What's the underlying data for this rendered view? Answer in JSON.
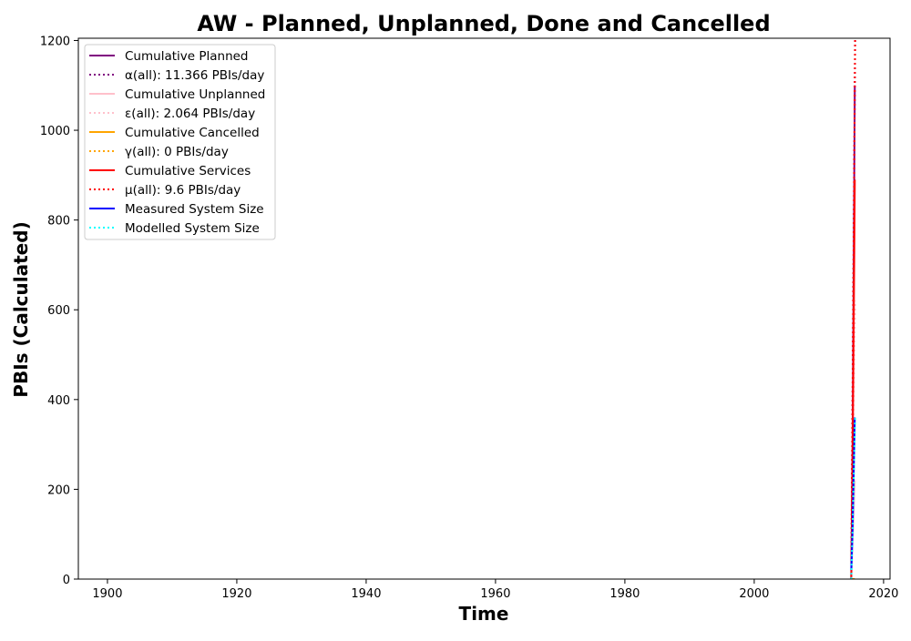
{
  "chart_data": {
    "type": "line",
    "title": "AW - Planned, Unplanned, Done  and Cancelled",
    "xlabel": "Time",
    "ylabel": "PBIs (Calculated)",
    "xlim": [
      1895.5,
      2021
    ],
    "ylim": [
      0,
      1205
    ],
    "x_ticks": [
      1900,
      1920,
      1940,
      1960,
      1980,
      2000,
      2020
    ],
    "y_ticks": [
      0,
      200,
      400,
      600,
      800,
      1000,
      1200
    ],
    "grid": false,
    "legend_position": "upper-left",
    "series": [
      {
        "name": "Cumulative Planned",
        "color": "#800080",
        "style": "solid",
        "x": [
          2015.0,
          2015.2,
          2015.4,
          2015.55
        ],
        "y": [
          0,
          300,
          750,
          1100
        ]
      },
      {
        "name": "α(all): 11.366 PBIs/day",
        "color": "#800080",
        "style": "dotted",
        "x": [
          2015.0,
          2015.6
        ],
        "y": [
          0,
          1205
        ]
      },
      {
        "name": "Cumulative Unplanned",
        "color": "#ffc0cb",
        "style": "solid",
        "x": [
          2015.0,
          2015.3,
          2015.55
        ],
        "y": [
          0,
          120,
          220
        ]
      },
      {
        "name": "ε(all): 2.064 PBIs/day",
        "color": "#ffc0cb",
        "style": "dotted",
        "x": [
          2015.0,
          2015.6
        ],
        "y": [
          0,
          620
        ]
      },
      {
        "name": "Cumulative Cancelled",
        "color": "#ffa500",
        "style": "solid",
        "x": [
          2015.0,
          2015.55
        ],
        "y": [
          0,
          0
        ]
      },
      {
        "name": "γ(all): 0 PBIs/day",
        "color": "#ffa500",
        "style": "dotted",
        "x": [
          2015.0,
          2015.6
        ],
        "y": [
          0,
          0
        ]
      },
      {
        "name": "Cumulative Services",
        "color": "#ff0000",
        "style": "solid",
        "x": [
          2015.0,
          2015.2,
          2015.4,
          2015.55
        ],
        "y": [
          0,
          250,
          600,
          890
        ]
      },
      {
        "name": "μ(all): 9.6 PBIs/day",
        "color": "#ff0000",
        "style": "dotted",
        "x": [
          2015.0,
          2015.6
        ],
        "y": [
          0,
          1205
        ]
      },
      {
        "name": "Measured System Size",
        "color": "#0000ff",
        "style": "solid",
        "x": [
          2015.0,
          2015.1,
          2015.2,
          2015.3,
          2015.4,
          2015.5,
          2015.55
        ],
        "y": [
          20,
          60,
          110,
          180,
          250,
          330,
          360
        ]
      },
      {
        "name": "Modelled System Size",
        "color": "#00ffff",
        "style": "dotted",
        "x": [
          2015.0,
          2015.6
        ],
        "y": [
          0,
          360
        ]
      }
    ]
  }
}
